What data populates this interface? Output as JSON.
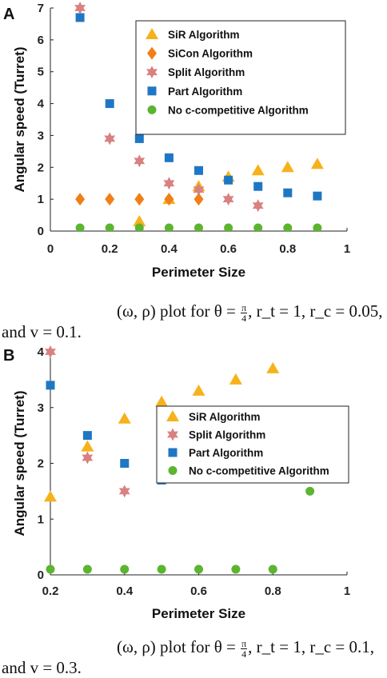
{
  "figure_labels": [
    "A",
    "B"
  ],
  "captions": [
    {
      "line1_prefix": "(ω, ρ) plot for θ =",
      "frac_num": "π",
      "frac_den": "4",
      "line1_suffix": ", r_t = 1, r_c = 0.05,",
      "line2": "and v = 0.1."
    },
    {
      "line1_prefix": "(ω, ρ) plot for θ =",
      "frac_num": "π",
      "frac_den": "4",
      "line1_suffix": ", r_t = 1, r_c = 0.1,",
      "line2": "and v = 0.3."
    }
  ],
  "series_styles": {
    "SiR Algorithm": {
      "color": "#f7b21b",
      "marker": "triangle"
    },
    "SiCon Algorithm": {
      "color": "#f07f16",
      "marker": "diamond"
    },
    "Split Algorithm": {
      "color": "#d98080",
      "marker": "star"
    },
    "Part Algorithm": {
      "color": "#1f77c4",
      "marker": "square"
    },
    "No c-competitive Algorithm": {
      "color": "#5bb52e",
      "marker": "circle"
    }
  },
  "chart_data": [
    {
      "type": "scatter",
      "panel": "A",
      "xlabel": "Perimeter Size",
      "ylabel": "Angular speed (Turret)",
      "xlim": [
        0,
        1
      ],
      "ylim": [
        0,
        7
      ],
      "xticks": [
        "0",
        "0.2",
        "0.4",
        "0.6",
        "0.8",
        "1"
      ],
      "xtick_values": [
        0,
        0.2,
        0.4,
        0.6,
        0.8,
        1
      ],
      "yticks": [
        "0",
        "1",
        "2",
        "3",
        "4",
        "5",
        "6",
        "7"
      ],
      "ytick_values": [
        0,
        1,
        2,
        3,
        4,
        5,
        6,
        7
      ],
      "grid": false,
      "legend_position": "top-right",
      "series": [
        {
          "name": "SiR Algorithm",
          "x": [
            0.1,
            0.2,
            0.3,
            0.4,
            0.5,
            0.6,
            0.7,
            0.8,
            0.9
          ],
          "y": [
            0.0,
            0.0,
            0.3,
            1.0,
            1.4,
            1.7,
            1.9,
            2.0,
            2.1
          ]
        },
        {
          "name": "SiCon Algorithm",
          "x": [
            0.1,
            0.2,
            0.3,
            0.4,
            0.5
          ],
          "y": [
            1.0,
            1.0,
            1.0,
            1.0,
            1.0
          ]
        },
        {
          "name": "Split Algorithm",
          "x": [
            0.1,
            0.2,
            0.3,
            0.4,
            0.5,
            0.6,
            0.7
          ],
          "y": [
            7.0,
            2.9,
            2.2,
            1.5,
            1.3,
            1.0,
            0.8
          ]
        },
        {
          "name": "Part Algorithm",
          "x": [
            0.1,
            0.2,
            0.3,
            0.4,
            0.5,
            0.6,
            0.7,
            0.8,
            0.9
          ],
          "y": [
            6.7,
            4.0,
            2.9,
            2.3,
            1.9,
            1.6,
            1.4,
            1.2,
            1.1
          ]
        },
        {
          "name": "No c-competitive Algorithm",
          "x": [
            0.1,
            0.2,
            0.3,
            0.4,
            0.5,
            0.6,
            0.7,
            0.8,
            0.9
          ],
          "y": [
            0.1,
            0.1,
            0.1,
            0.1,
            0.1,
            0.1,
            0.1,
            0.1,
            0.1
          ]
        }
      ]
    },
    {
      "type": "scatter",
      "panel": "B",
      "xlabel": "Perimeter Size",
      "ylabel": "Angular speed (Turret)",
      "xlim": [
        0.2,
        1
      ],
      "ylim": [
        0,
        4
      ],
      "xticks": [
        "0.2",
        "0.4",
        "0.6",
        "0.8",
        "1"
      ],
      "xtick_values": [
        0.2,
        0.4,
        0.6,
        0.8,
        1
      ],
      "yticks": [
        "0",
        "1",
        "2",
        "3",
        "4"
      ],
      "ytick_values": [
        0,
        1,
        2,
        3,
        4
      ],
      "grid": false,
      "legend_position": "center-right",
      "series": [
        {
          "name": "SiR Algorithm",
          "x": [
            0.2,
            0.3,
            0.4,
            0.5,
            0.6,
            0.7,
            0.8
          ],
          "y": [
            1.4,
            2.3,
            2.8,
            3.1,
            3.3,
            3.5,
            3.7
          ]
        },
        {
          "name": "Split Algorithm",
          "x": [
            0.2,
            0.3,
            0.4
          ],
          "y": [
            4.0,
            2.1,
            1.5
          ]
        },
        {
          "name": "Part Algorithm",
          "x": [
            0.2,
            0.3,
            0.4,
            0.5
          ],
          "y": [
            3.4,
            2.5,
            2.0,
            1.7
          ]
        },
        {
          "name": "No c-competitive Algorithm",
          "x": [
            0.2,
            0.3,
            0.4,
            0.5,
            0.6,
            0.7,
            0.8,
            0.9
          ],
          "y": [
            0.1,
            0.1,
            0.1,
            0.1,
            0.1,
            0.1,
            0.1,
            1.5
          ]
        }
      ]
    }
  ]
}
